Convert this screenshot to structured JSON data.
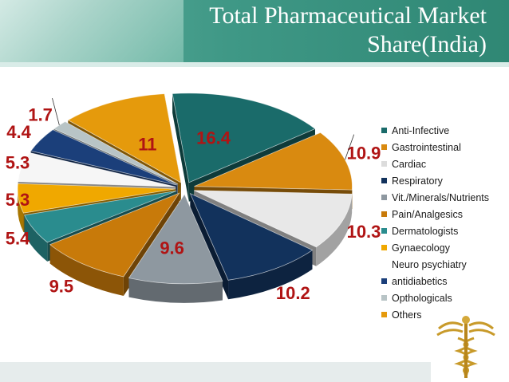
{
  "header": {
    "title_line1": "Total Pharmaceutical Market",
    "title_line2": "Share(India)"
  },
  "chart_data": {
    "type": "pie",
    "title": "Total Pharmaceutical Market Share(India)",
    "slices": [
      {
        "label": "Anti-Infective",
        "value": 16.4,
        "color": "#1a6b6a"
      },
      {
        "label": "Gastrointestinal",
        "value": 10.9,
        "color": "#d98a10"
      },
      {
        "label": "Cardiac",
        "value": 10.3,
        "color": "#e8e8e8"
      },
      {
        "label": "Respiratory",
        "value": 10.2,
        "color": "#12325c"
      },
      {
        "label": "Vit./Minerals/Nutrients",
        "value": 9.6,
        "color": "#8e98a0"
      },
      {
        "label": "Pain/Analgesics",
        "value": 9.5,
        "color": "#c87a0a"
      },
      {
        "label": "Dermatologists",
        "value": 5.4,
        "color": "#2a8c8e"
      },
      {
        "label": "Gynaecology",
        "value": 5.3,
        "color": "#f0a800"
      },
      {
        "label": "Neuro psychiatry",
        "value": 5.3,
        "color": "#f6f6f6"
      },
      {
        "label": "antidiabetics",
        "value": 4.4,
        "color": "#1b3f7a"
      },
      {
        "label": "Opthologicals",
        "value": 1.7,
        "color": "#b8c4c6"
      },
      {
        "label": "Others",
        "value": 11,
        "color": "#e59a0c"
      }
    ],
    "legend": [
      {
        "label": "Anti-Infective",
        "color": "#1a6b6a"
      },
      {
        "label": "Gastrointestinal",
        "color": "#d98a10"
      },
      {
        "label": "Cardiac",
        "color": "#dcdcdc"
      },
      {
        "label": "Respiratory",
        "color": "#12325c"
      },
      {
        "label": "Vit./Minerals/Nutrients",
        "color": "#8e98a0"
      },
      {
        "label": "Pain/Analgesics",
        "color": "#c87a0a"
      },
      {
        "label": "Dermatologists",
        "color": "#2a8c8e"
      },
      {
        "label": "Gynaecology",
        "color": "#f0a800"
      },
      {
        "label": "Neuro psychiatry",
        "color": ""
      },
      {
        "label": "antidiabetics",
        "color": "#1b3f7a"
      },
      {
        "label": "Opthologicals",
        "color": "#b8c4c6"
      },
      {
        "label": "Others",
        "color": "#e59a0c"
      }
    ],
    "legend_position": "right",
    "exploded": true,
    "three_d": true,
    "label_color": "#b01414"
  }
}
